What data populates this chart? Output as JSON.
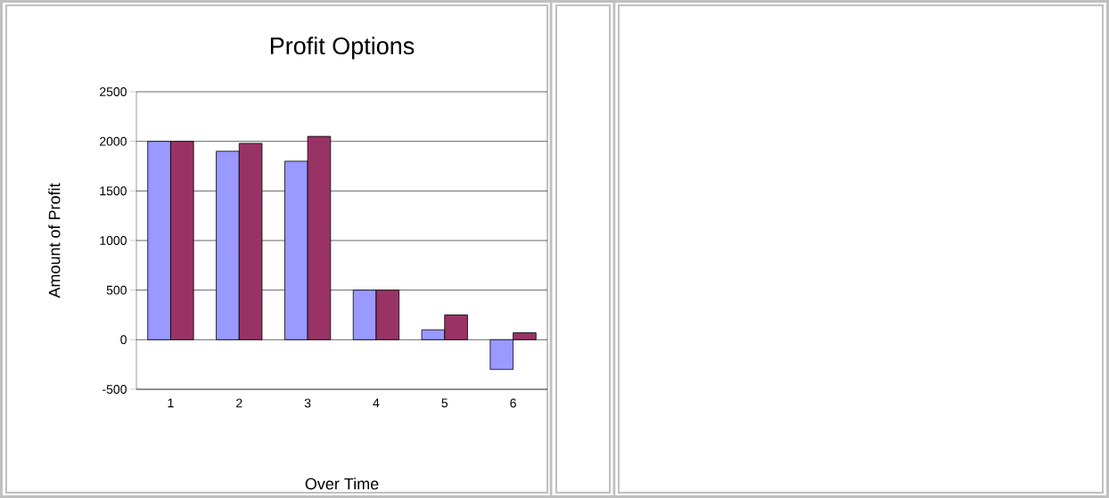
{
  "chart_data": {
    "type": "bar",
    "title": "Profit Options",
    "xlabel": "Over Time",
    "ylabel": "Amount of Profit",
    "categories": [
      "1",
      "2",
      "3",
      "4",
      "5",
      "6"
    ],
    "series": [
      {
        "color": "#9999ff",
        "values": [
          2000,
          1900,
          1800,
          500,
          100,
          -300
        ]
      },
      {
        "color": "#993366",
        "values": [
          2000,
          1980,
          2050,
          500,
          250,
          70
        ]
      }
    ],
    "ylim": [
      -500,
      2500
    ],
    "yticks": [
      -500,
      0,
      500,
      1000,
      1500,
      2000,
      2500
    ],
    "grid": "y"
  }
}
